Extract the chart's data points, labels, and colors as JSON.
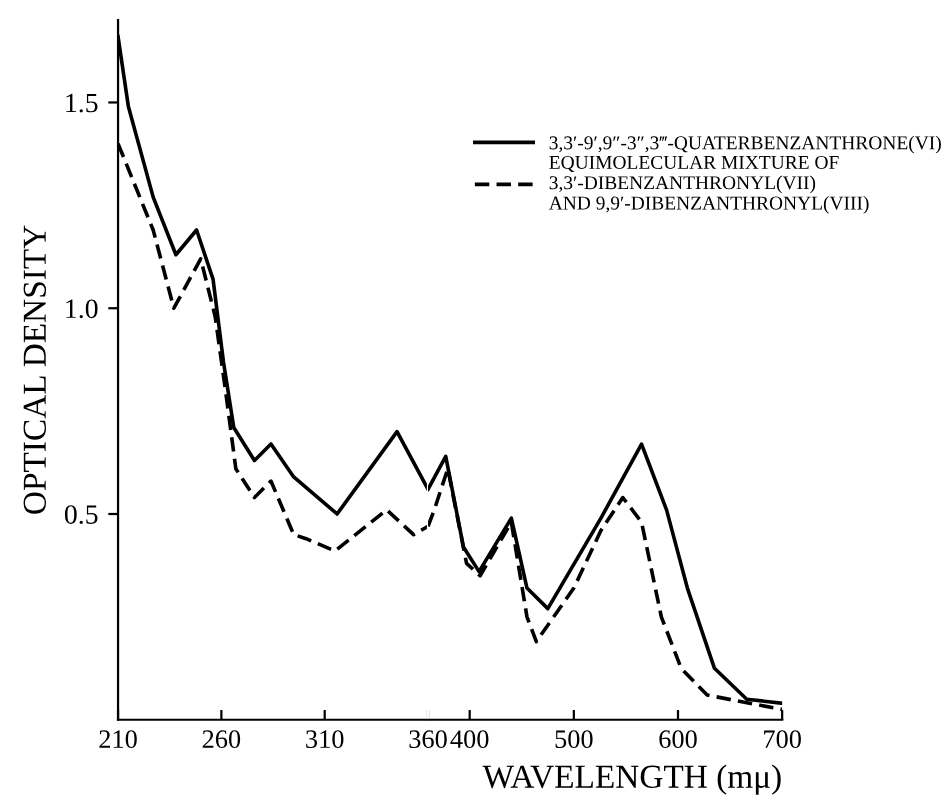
{
  "chart_data": [
    {
      "type": "line",
      "ylabel": "OPTICAL DENSITY",
      "xlim": [
        210,
        360
      ],
      "xticks": [
        210,
        260,
        310,
        360
      ],
      "ylim": [
        0,
        1.7
      ],
      "yticks": [
        0.5,
        {
          "value": 1.0,
          "label": "1.0"
        },
        1.5
      ],
      "grid": false,
      "marker": "none",
      "series": [
        {
          "color": "#000000",
          "line_style": "solid",
          "x": [
            210,
            215,
            227,
            238,
            248,
            256,
            261,
            266,
            276,
            284,
            295,
            316,
            345,
            360
          ],
          "values": [
            1.66,
            1.49,
            1.27,
            1.13,
            1.19,
            1.07,
            0.87,
            0.71,
            0.63,
            0.67,
            0.59,
            0.5,
            0.7,
            0.56
          ]
        },
        {
          "color": "#000000",
          "line_style": "dashed",
          "x": [
            210,
            227,
            237,
            250,
            257,
            262,
            267,
            276,
            284,
            295,
            301,
            315,
            340,
            353,
            360
          ],
          "values": [
            1.4,
            1.19,
            1.0,
            1.12,
            0.98,
            0.8,
            0.61,
            0.54,
            0.58,
            0.45,
            0.44,
            0.41,
            0.51,
            0.45,
            0.47
          ]
        }
      ]
    },
    {
      "type": "line",
      "xlabel": "WAVELENGTH (mμ)",
      "xlim": [
        360,
        700
      ],
      "xticks": [
        400,
        500,
        600,
        700
      ],
      "ylim": [
        0,
        1.7
      ],
      "tick_labels": "x",
      "grid": false,
      "legend": "top right",
      "marker": "none",
      "series": [
        {
          "name": "3,3′-9′,9″-3″,3‴-QUATERBENZANTHRONE(VI)",
          "color": "#000000",
          "line_style": "solid",
          "x": [
            360,
            377,
            394,
            409,
            440,
            455,
            475,
            526,
            565,
            589,
            609,
            635,
            666,
            700
          ],
          "values": [
            0.56,
            0.64,
            0.42,
            0.36,
            0.49,
            0.32,
            0.27,
            0.49,
            0.67,
            0.51,
            0.32,
            0.125,
            0.05,
            0.04
          ]
        },
        {
          "name": "EQUIMOLECULAR MIXTURE OF\n3,3′-DIBENZANTHRONYL(VII)\nAND 9,9′-DIBENZANTHRONYL(VIII)",
          "color": "#000000",
          "line_style": "dashed",
          "x": [
            360,
            366,
            379,
            397,
            410,
            440,
            455,
            464,
            500,
            526,
            547,
            565,
            584,
            603,
            628,
            700
          ],
          "values": [
            0.47,
            0.51,
            0.61,
            0.38,
            0.35,
            0.48,
            0.25,
            0.19,
            0.32,
            0.46,
            0.54,
            0.48,
            0.25,
            0.125,
            0.06,
            0.025
          ]
        }
      ]
    }
  ]
}
